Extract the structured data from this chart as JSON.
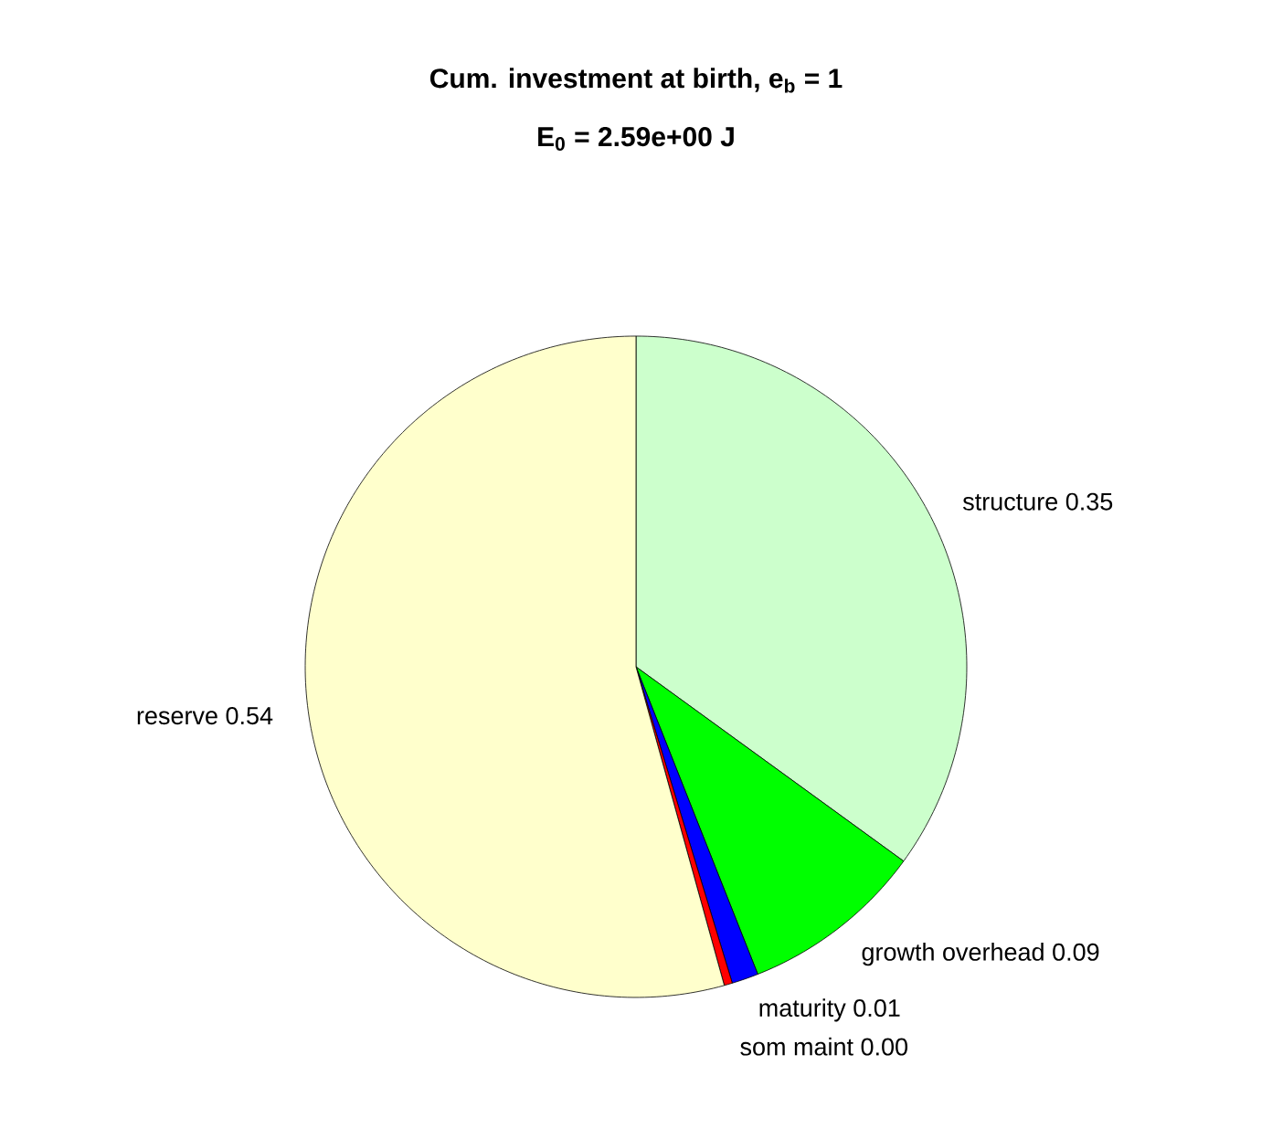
{
  "chart_data": {
    "type": "pie",
    "title": "Cum. investment at birth, e$_{b}$ = 1",
    "subtitle": "E$_{0}$ = 2.59e+00 J",
    "categories": [
      "structure",
      "growth overhead",
      "maturity",
      "som maint",
      "reserve"
    ],
    "values": [
      0.35,
      0.09,
      0.013,
      0.004,
      0.543
    ],
    "value_labels": [
      "0.35",
      "0.09",
      "0.01",
      "0.00",
      "0.54"
    ],
    "colors": [
      "#ccffcc",
      "#00ff00",
      "#0000ff",
      "#ff0000",
      "#ffffcc"
    ]
  }
}
